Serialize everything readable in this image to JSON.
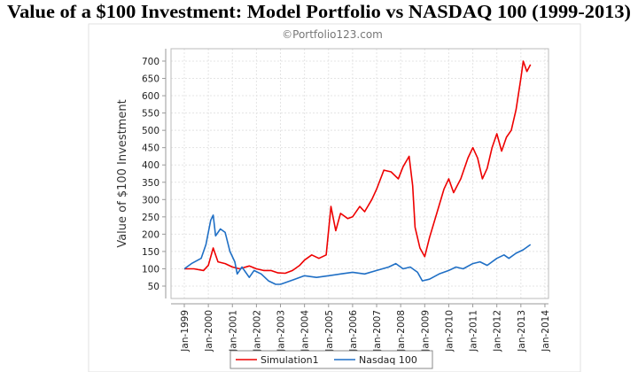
{
  "chart_data": {
    "type": "line",
    "title": "Value of a $100 Investment: Model Portfolio vs NASDAQ 100 (1999-2013)",
    "watermark": "©Portfolio123.com",
    "xlabel": "",
    "ylabel": "Value of $100 Investment",
    "xlim": [
      1999,
      2014
    ],
    "ylim": [
      50,
      700
    ],
    "yticks": [
      50,
      100,
      150,
      200,
      250,
      300,
      350,
      400,
      450,
      500,
      550,
      600,
      650,
      700
    ],
    "xticks": [
      "Jan-1999",
      "Jan-2000",
      "Jan-2001",
      "Jan-2002",
      "Jan-2003",
      "Jan-2004",
      "Jan-2005",
      "Jan-2006",
      "Jan-2007",
      "Jan-2008",
      "Jan-2009",
      "Jan-2010",
      "Jan-2011",
      "Jan-2012",
      "Jan-2013",
      "Jan-2014"
    ],
    "grid": true,
    "legend_position": "bottom",
    "series": [
      {
        "name": "Simulation1",
        "color": "#ee0000",
        "x": [
          1999.0,
          1999.4,
          1999.8,
          2000.0,
          2000.2,
          2000.4,
          2000.7,
          2001.0,
          2001.3,
          2001.7,
          2002.0,
          2002.3,
          2002.6,
          2002.9,
          2003.2,
          2003.5,
          2003.8,
          2004.0,
          2004.3,
          2004.6,
          2004.9,
          2005.0,
          2005.1,
          2005.3,
          2005.5,
          2005.8,
          2006.0,
          2006.3,
          2006.5,
          2006.8,
          2007.0,
          2007.3,
          2007.6,
          2007.9,
          2008.1,
          2008.35,
          2008.5,
          2008.6,
          2008.8,
          2009.0,
          2009.2,
          2009.5,
          2009.8,
          2010.0,
          2010.2,
          2010.5,
          2010.8,
          2011.0,
          2011.2,
          2011.4,
          2011.6,
          2011.8,
          2012.0,
          2012.2,
          2012.4,
          2012.6,
          2012.8,
          2013.0,
          2013.1,
          2013.25,
          2013.4
        ],
        "y": [
          100,
          100,
          95,
          110,
          160,
          120,
          115,
          105,
          100,
          108,
          100,
          95,
          95,
          88,
          87,
          95,
          110,
          125,
          140,
          130,
          140,
          210,
          280,
          210,
          260,
          245,
          250,
          280,
          265,
          300,
          330,
          385,
          380,
          360,
          395,
          425,
          340,
          220,
          160,
          135,
          190,
          260,
          330,
          360,
          320,
          360,
          420,
          450,
          420,
          360,
          390,
          450,
          490,
          440,
          480,
          500,
          560,
          650,
          700,
          670,
          690
        ]
      },
      {
        "name": "Nasdaq 100",
        "color": "#1f6fc5",
        "x": [
          1999.0,
          1999.3,
          1999.7,
          1999.9,
          2000.1,
          2000.2,
          2000.3,
          2000.5,
          2000.7,
          2000.9,
          2001.1,
          2001.2,
          2001.4,
          2001.7,
          2001.9,
          2002.2,
          2002.5,
          2002.8,
          2003.0,
          2003.2,
          2003.6,
          2004.0,
          2004.5,
          2005.0,
          2005.5,
          2006.0,
          2006.5,
          2007.0,
          2007.5,
          2007.8,
          2008.1,
          2008.4,
          2008.7,
          2008.9,
          2009.2,
          2009.6,
          2010.0,
          2010.3,
          2010.6,
          2011.0,
          2011.3,
          2011.6,
          2012.0,
          2012.3,
          2012.5,
          2012.8,
          2013.1,
          2013.4
        ],
        "y": [
          100,
          115,
          130,
          170,
          240,
          255,
          195,
          215,
          205,
          150,
          120,
          85,
          105,
          75,
          95,
          85,
          65,
          55,
          55,
          60,
          70,
          80,
          75,
          80,
          85,
          90,
          85,
          95,
          105,
          115,
          100,
          105,
          90,
          65,
          70,
          85,
          95,
          105,
          100,
          115,
          120,
          110,
          130,
          140,
          130,
          145,
          155,
          170
        ]
      }
    ]
  }
}
